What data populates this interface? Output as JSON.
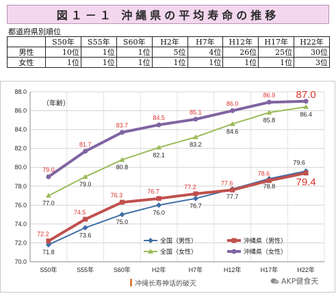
{
  "title": "図１－１ 沖縄県の平均寿命の推移",
  "rank_table": {
    "caption": "都道府県別順位",
    "columns": [
      "S50年",
      "S55年",
      "S60年",
      "H2年",
      "H7年",
      "H12年",
      "H17年",
      "H22年"
    ],
    "rows": [
      {
        "label": "男性",
        "values": [
          "10位",
          "1位",
          "1位",
          "5位",
          "4位",
          "26位",
          "25位",
          "30位"
        ]
      },
      {
        "label": "女性",
        "values": [
          "1位",
          "1位",
          "1位",
          "1位",
          "1位",
          "1位",
          "1位",
          "3位"
        ]
      }
    ]
  },
  "chart_data": {
    "type": "line",
    "ylabel": "（年齢）",
    "ylim": [
      70.0,
      88.0
    ],
    "ytick_step": 2.0,
    "yticks": [
      "70.0",
      "72.0",
      "74.0",
      "76.0",
      "78.0",
      "80.0",
      "82.0",
      "84.0",
      "86.0",
      "88.0"
    ],
    "categories": [
      "S50年",
      "S55年",
      "S60年",
      "H2年",
      "H7年",
      "H12年",
      "H17年",
      "H22年"
    ],
    "grid": true,
    "series": [
      {
        "name": "全国（男性）",
        "color": "#3f6ea6",
        "marker": "diamond",
        "values": [
          71.8,
          73.6,
          75.0,
          76.0,
          76.7,
          77.7,
          78.8,
          79.6
        ]
      },
      {
        "name": "沖縄県（男性）",
        "color": "#c0504d",
        "marker": "square",
        "values": [
          72.2,
          74.5,
          76.3,
          76.7,
          77.2,
          77.6,
          78.6,
          79.4
        ]
      },
      {
        "name": "全国（女性）",
        "color": "#9bbb59",
        "marker": "triangle",
        "values": [
          77.0,
          79.0,
          80.8,
          82.1,
          83.2,
          84.6,
          85.8,
          86.4
        ]
      },
      {
        "name": "沖縄県（女性）",
        "color": "#8064a2",
        "marker": "circle",
        "values": [
          79.0,
          81.7,
          83.7,
          84.5,
          85.1,
          86.0,
          86.9,
          87.0
        ]
      }
    ],
    "data_labels": [
      {
        "series": 0,
        "labels": [
          "71.8",
          "73.6",
          "75.0",
          "76.0",
          "76.7",
          "77.7",
          "78.8",
          "79.6"
        ],
        "color": "#222222"
      },
      {
        "series": 1,
        "labels": [
          "72.2",
          "74.5",
          "76.3",
          "76.7",
          "77.2",
          "77.6",
          "78.6",
          "79.4"
        ],
        "color": "#d9312b"
      },
      {
        "series": 2,
        "labels": [
          "77.0",
          "79.0",
          "80.8",
          "82.1",
          "83.2",
          "84.6",
          "85.8",
          "86.4"
        ],
        "color": "#222222"
      },
      {
        "series": 3,
        "labels": [
          "79.0",
          "81.7",
          "83.7",
          "84.5",
          "85.1",
          "86.0",
          "86.9",
          "87.0"
        ],
        "color": "#d9312b"
      }
    ],
    "legend": "bottom-right"
  },
  "footer": {
    "text": "冲绳长寿神话的破灭"
  },
  "watermark": {
    "text": "AKP健食天"
  }
}
